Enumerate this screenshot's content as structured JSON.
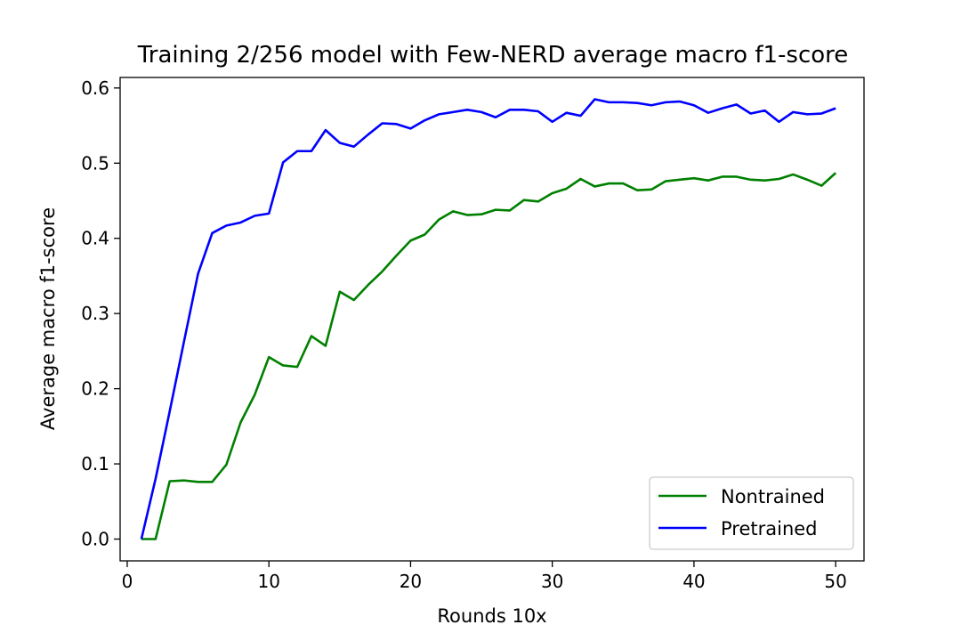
{
  "chart_data": {
    "type": "line",
    "title": "Training 2/256 model with Few-NERD average macro f1-score",
    "xlabel": "Rounds 10x",
    "ylabel": "Average macro f1-score",
    "xlim": [
      -0.5,
      52.0
    ],
    "ylim": [
      -0.029,
      0.614
    ],
    "xticks": [
      0,
      10,
      20,
      30,
      40,
      50
    ],
    "xtick_labels": [
      "0",
      "10",
      "20",
      "30",
      "40",
      "50"
    ],
    "yticks": [
      0.0,
      0.1,
      0.2,
      0.3,
      0.4,
      0.5,
      0.6
    ],
    "ytick_labels": [
      "0.0",
      "0.1",
      "0.2",
      "0.3",
      "0.4",
      "0.5",
      "0.6"
    ],
    "grid": false,
    "legend_position": "lower right",
    "x": [
      1,
      2,
      3,
      4,
      5,
      6,
      7,
      8,
      9,
      10,
      11,
      12,
      13,
      14,
      15,
      16,
      17,
      18,
      19,
      20,
      21,
      22,
      23,
      24,
      25,
      26,
      27,
      28,
      29,
      30,
      31,
      32,
      33,
      34,
      35,
      36,
      37,
      38,
      39,
      40,
      41,
      42,
      43,
      44,
      45,
      46,
      47,
      48,
      49,
      50
    ],
    "series": [
      {
        "name": "Nontrained",
        "color": "#008000",
        "values": [
          0.0,
          0.0,
          0.077,
          0.078,
          0.076,
          0.076,
          0.099,
          0.155,
          0.192,
          0.242,
          0.231,
          0.229,
          0.27,
          0.257,
          0.329,
          0.318,
          0.338,
          0.356,
          0.377,
          0.397,
          0.405,
          0.425,
          0.436,
          0.431,
          0.432,
          0.438,
          0.437,
          0.451,
          0.449,
          0.46,
          0.466,
          0.479,
          0.469,
          0.473,
          0.473,
          0.464,
          0.465,
          0.476,
          0.478,
          0.48,
          0.477,
          0.482,
          0.482,
          0.478,
          0.477,
          0.479,
          0.485,
          0.478,
          0.47,
          0.487
        ]
      },
      {
        "name": "Pretrained",
        "color": "#0000ff",
        "values": [
          0.0,
          0.08,
          0.17,
          0.262,
          0.353,
          0.407,
          0.417,
          0.421,
          0.43,
          0.433,
          0.501,
          0.516,
          0.516,
          0.544,
          0.527,
          0.522,
          0.538,
          0.553,
          0.552,
          0.546,
          0.557,
          0.565,
          0.568,
          0.571,
          0.568,
          0.561,
          0.571,
          0.571,
          0.569,
          0.555,
          0.567,
          0.563,
          0.585,
          0.581,
          0.581,
          0.58,
          0.577,
          0.581,
          0.582,
          0.577,
          0.567,
          0.573,
          0.578,
          0.566,
          0.57,
          0.555,
          0.568,
          0.565,
          0.566,
          0.573
        ]
      }
    ]
  }
}
